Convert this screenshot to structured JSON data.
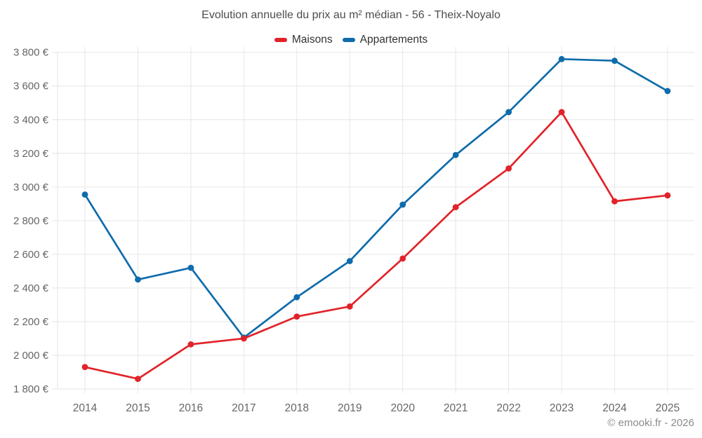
{
  "header": {
    "title": "Evolution annuelle du prix au m² médian - 56 - Theix-Noyalo"
  },
  "legend": {
    "items": [
      {
        "label": "Maisons",
        "color": "#e12329"
      },
      {
        "label": "Appartements",
        "color": "#0f6cab"
      }
    ]
  },
  "footer": {
    "credit": "© emooki.fr - 2026"
  },
  "chart_data": {
    "type": "line",
    "title": "Evolution annuelle du prix au m² médian - 56 - Theix-Noyalo",
    "categories": [
      "2014",
      "2015",
      "2016",
      "2017",
      "2018",
      "2019",
      "2020",
      "2021",
      "2022",
      "2023",
      "2024",
      "2025"
    ],
    "series": [
      {
        "name": "Maisons",
        "color": "#e12329",
        "values": [
          1930,
          1860,
          2065,
          2100,
          2230,
          2290,
          2575,
          2880,
          3110,
          3445,
          2915,
          2950
        ]
      },
      {
        "name": "Appartements",
        "color": "#0f6cab",
        "values": [
          2955,
          2450,
          2520,
          2105,
          2345,
          2560,
          2895,
          3190,
          3445,
          3760,
          3750,
          3570
        ]
      }
    ],
    "xlabel": "",
    "ylabel": "",
    "ylim": [
      1800,
      3800
    ],
    "y_tick_step": 200,
    "y_ticks": [
      1800,
      2000,
      2200,
      2400,
      2600,
      2800,
      3000,
      3200,
      3400,
      3600,
      3800
    ],
    "y_tick_labels": [
      "1 800 €",
      "2 000 €",
      "2 200 €",
      "2 400 €",
      "2 600 €",
      "2 800 €",
      "3 000 €",
      "3 200 €",
      "3 400 €",
      "3 600 €",
      "3 800 €"
    ],
    "grid": true,
    "legend_position": "top",
    "grid_color": "#e6e6e6",
    "axis_label_color": "#666666"
  }
}
